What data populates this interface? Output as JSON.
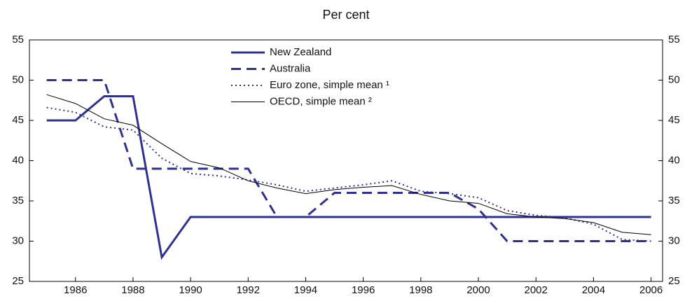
{
  "chart_data": {
    "type": "line",
    "title": "Per cent",
    "x": [
      1985,
      1986,
      1987,
      1988,
      1989,
      1990,
      1991,
      1992,
      1993,
      1994,
      1995,
      1996,
      1997,
      1998,
      1999,
      2000,
      2001,
      2002,
      2003,
      2004,
      2005,
      2006
    ],
    "xlim": [
      1984.4,
      2006.4
    ],
    "xticks": [
      1986,
      1988,
      1990,
      1992,
      1994,
      1996,
      1998,
      2000,
      2002,
      2004,
      2006
    ],
    "ylim": [
      25,
      55
    ],
    "yticks": [
      25,
      30,
      35,
      40,
      45,
      50,
      55
    ],
    "y2lim": [
      25,
      55
    ],
    "y2ticks": [
      25,
      30,
      35,
      40,
      45,
      50,
      55
    ],
    "series": [
      {
        "name": "New Zealand",
        "color": "#2e3192",
        "style": "solid",
        "width": 3,
        "values": [
          45,
          45,
          48,
          48,
          28,
          33,
          33,
          33,
          33,
          33,
          33,
          33,
          33,
          33,
          33,
          33,
          33,
          33,
          33,
          33,
          33,
          33
        ]
      },
      {
        "name": "Australia",
        "color": "#2e3192",
        "style": "dashed",
        "width": 3,
        "values": [
          50,
          50,
          50,
          39,
          39,
          39,
          39,
          39,
          33,
          33,
          36,
          36,
          36,
          36,
          36,
          34,
          30,
          30,
          30,
          30,
          30,
          30
        ]
      },
      {
        "name": "Euro zone, simple mean ¹",
        "color": "#2e3192",
        "style": "dotted",
        "width": 2,
        "values": [
          46.6,
          46,
          44.2,
          43.8,
          40.3,
          38.4,
          38.1,
          37.6,
          37,
          36.2,
          36.6,
          37,
          37.5,
          36.2,
          35.9,
          35.4,
          33.8,
          33.2,
          32.9,
          32.1,
          30.2,
          30.0
        ]
      },
      {
        "name": "OECD, simple mean ²",
        "color": "#000000",
        "style": "solid",
        "width": 1,
        "values": [
          48.2,
          47.1,
          45.2,
          44.4,
          42.1,
          39.9,
          39.1,
          37.5,
          36.6,
          35.9,
          36.4,
          36.7,
          36.9,
          35.8,
          35.0,
          34.7,
          33.4,
          33.0,
          32.8,
          32.3,
          31.1,
          30.8
        ]
      }
    ]
  }
}
